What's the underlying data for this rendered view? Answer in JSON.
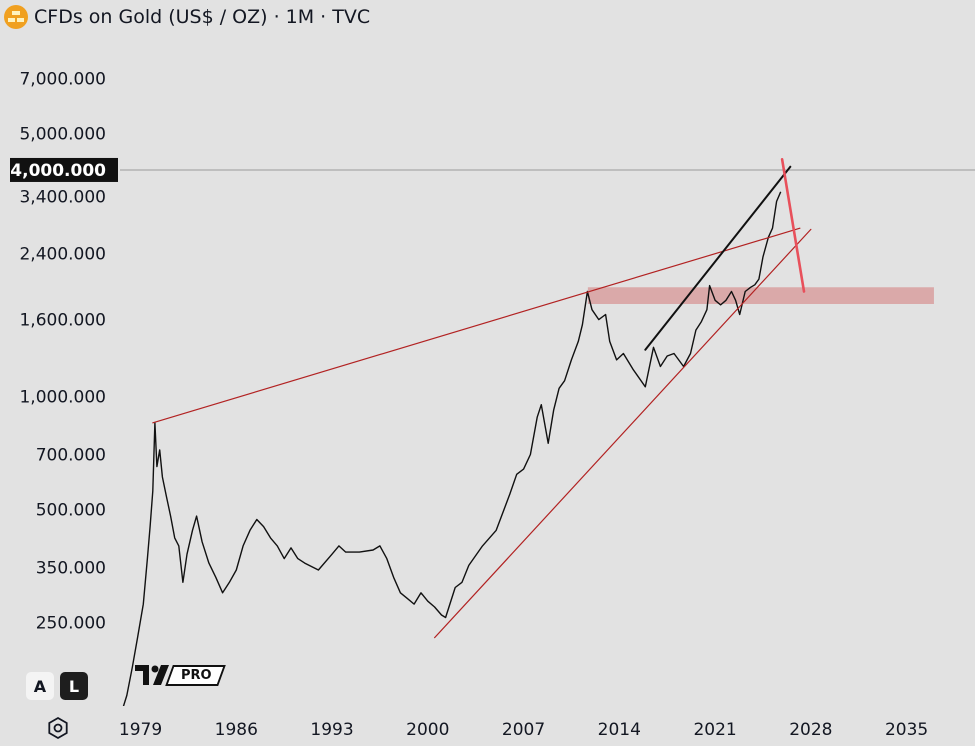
{
  "header": {
    "title": "CFDs on Gold (US$ / OZ) · 1M · TVC"
  },
  "toolbar": {
    "auto_scale_label": "A",
    "log_scale_label": "L",
    "pro_label": "PRO"
  },
  "chart_data": {
    "type": "line",
    "scale": "log",
    "title": "CFDs on Gold (US$ / OZ) · 1M · TVC",
    "y_ticks": [
      "7,000.000",
      "5,000.000",
      "3,400.000",
      "2,400.000",
      "1,600.000",
      "1,000.000",
      "700.000",
      "500.000",
      "350.000",
      "250.000"
    ],
    "y_tick_values": [
      7000,
      5000,
      3400,
      2400,
      1600,
      1000,
      700,
      500,
      350,
      250
    ],
    "x_ticks": [
      "1979",
      "1986",
      "1993",
      "2000",
      "2007",
      "2014",
      "2021",
      "2028",
      "2035"
    ],
    "x_tick_values": [
      1979,
      1986,
      1993,
      2000,
      2007,
      2014,
      2021,
      2028,
      2035
    ],
    "ylim": [
      150,
      8600
    ],
    "xlim": [
      1977.5,
      2040
    ],
    "current_price": {
      "label": "4,000.000",
      "value": 4000
    },
    "series": [
      {
        "name": "Gold",
        "x": [
          1977.5,
          1978.0,
          1978.4,
          1978.8,
          1979.2,
          1979.5,
          1979.7,
          1979.9,
          1980.05,
          1980.2,
          1980.4,
          1980.6,
          1980.9,
          1981.2,
          1981.5,
          1981.8,
          1982.1,
          1982.4,
          1982.8,
          1983.1,
          1983.5,
          1984.0,
          1984.5,
          1985.0,
          1985.5,
          1986.0,
          1986.5,
          1987.0,
          1987.5,
          1988.0,
          1988.5,
          1989.0,
          1989.5,
          1990.0,
          1990.5,
          1991.0,
          1992.0,
          1993.0,
          1993.5,
          1994.0,
          1995.0,
          1996.0,
          1996.5,
          1997.0,
          1997.5,
          1998.0,
          1998.5,
          1999.0,
          1999.5,
          2000.0,
          2000.5,
          2001.0,
          2001.3,
          2002.0,
          2002.5,
          2003.0,
          2004.0,
          2005.0,
          2006.0,
          2006.5,
          2007.0,
          2007.5,
          2008.0,
          2008.3,
          2008.8,
          2009.2,
          2009.6,
          2010.0,
          2010.5,
          2011.0,
          2011.3,
          2011.67,
          2012.0,
          2012.5,
          2013.0,
          2013.3,
          2013.8,
          2014.3,
          2015.0,
          2015.9,
          2016.5,
          2017.0,
          2017.5,
          2018.0,
          2018.7,
          2019.2,
          2019.6,
          2020.0,
          2020.4,
          2020.6,
          2021.0,
          2021.4,
          2021.8,
          2022.2,
          2022.5,
          2022.8,
          2023.2,
          2023.6,
          2023.9,
          2024.2,
          2024.5,
          2024.9,
          2025.2,
          2025.5,
          2025.8
        ],
        "values": [
          140,
          160,
          190,
          230,
          280,
          370,
          450,
          560,
          850,
          650,
          720,
          610,
          540,
          480,
          420,
          400,
          320,
          380,
          440,
          480,
          410,
          360,
          330,
          300,
          320,
          345,
          400,
          440,
          470,
          450,
          420,
          400,
          370,
          395,
          370,
          360,
          345,
          380,
          400,
          385,
          385,
          390,
          400,
          370,
          330,
          300,
          290,
          280,
          300,
          285,
          275,
          262,
          258,
          310,
          320,
          355,
          400,
          440,
          550,
          620,
          640,
          700,
          880,
          950,
          750,
          920,
          1050,
          1100,
          1250,
          1400,
          1550,
          1900,
          1700,
          1600,
          1650,
          1400,
          1250,
          1300,
          1180,
          1060,
          1350,
          1200,
          1280,
          1300,
          1200,
          1300,
          1500,
          1580,
          1700,
          1970,
          1800,
          1750,
          1800,
          1900,
          1800,
          1650,
          1900,
          1950,
          1980,
          2050,
          2350,
          2650,
          2800,
          3300,
          3500
        ]
      }
    ],
    "lines": [
      {
        "name": "resistance-trendline",
        "color": "#b22222",
        "x": [
          1979.9,
          2027.2
        ],
        "values": [
          850,
          2800
        ]
      },
      {
        "name": "support-trendline",
        "color": "#b22222",
        "x": [
          2000.5,
          2028.0
        ],
        "values": [
          228,
          2780
        ]
      },
      {
        "name": "channel-line",
        "color": "#111111",
        "x": [
          2015.9,
          2026.5
        ],
        "values": [
          1330,
          4080
        ]
      },
      {
        "name": "projection-arrow",
        "color": "#e8505b",
        "x": [
          2025.9,
          2027.5
        ],
        "values": [
          4270,
          1900
        ]
      }
    ],
    "zone": {
      "name": "support-zone",
      "color": "#d9a3a3",
      "x": [
        2011.7,
        2037.0
      ],
      "values": [
        1760,
        1950
      ]
    }
  }
}
